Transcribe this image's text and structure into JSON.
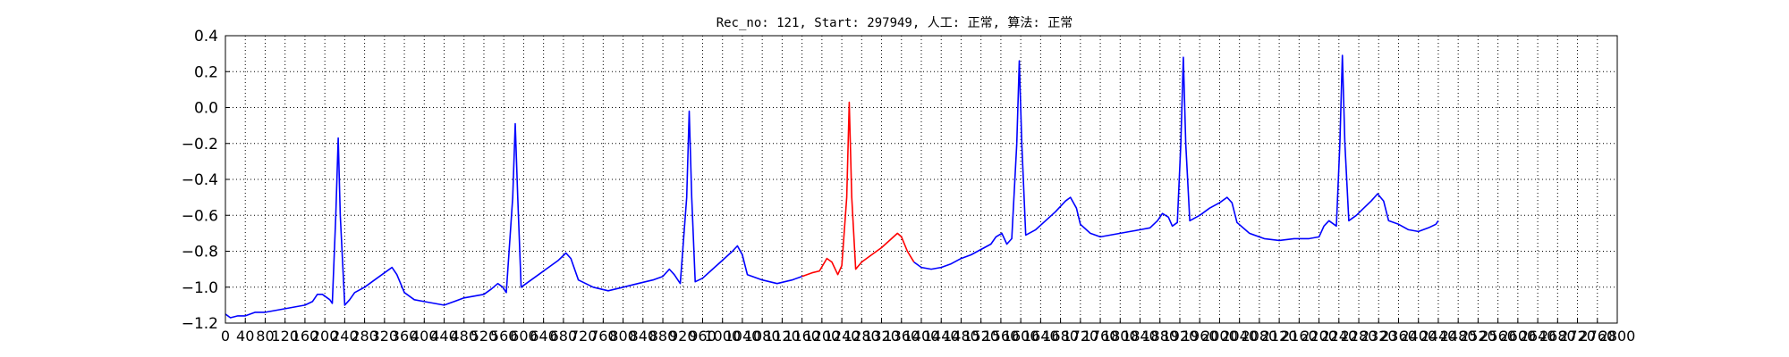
{
  "chart_data": {
    "type": "line",
    "title": "Rec_no: 121, Start: 297949, 人工: 正常, 算法: 正常",
    "xlabel": "",
    "ylabel": "",
    "xlim": [
      0,
      2800
    ],
    "ylim": [
      -1.2,
      0.4
    ],
    "grid": true,
    "y_ticks": [
      0.4,
      0.2,
      0.0,
      -0.2,
      -0.4,
      -0.6,
      -0.8,
      -1.0,
      -1.2
    ],
    "y_tick_labels": [
      "0.4",
      "0.2",
      "0.0",
      "−0.2",
      "−0.4",
      "−0.6",
      "−0.8",
      "−1.0",
      "−1.2"
    ],
    "x_ticks": [
      0,
      40,
      80,
      120,
      160,
      200,
      240,
      280,
      320,
      360,
      400,
      440,
      480,
      520,
      560,
      600,
      640,
      680,
      720,
      760,
      800,
      840,
      880,
      920,
      960,
      1000,
      1040,
      1080,
      1120,
      1160,
      1200,
      1240,
      1280,
      1320,
      1360,
      1400,
      1440,
      1480,
      1520,
      1560,
      1600,
      1640,
      1680,
      1720,
      1760,
      1800,
      1840,
      1880,
      1920,
      1960,
      2000,
      2040,
      2080,
      2120,
      2160,
      2200,
      2240,
      2280,
      2320,
      2360,
      2400,
      2440,
      2480,
      2520,
      2560,
      2600,
      2640,
      2680,
      2720,
      2760,
      2800
    ],
    "x_tick_labels": [
      "0",
      "40",
      "80",
      "120",
      "160",
      "200",
      "240",
      "280",
      "320",
      "360",
      "400",
      "440",
      "480",
      "520",
      "560",
      "600",
      "640",
      "680",
      "720",
      "760",
      "800",
      "840",
      "880",
      "920",
      "960",
      "1000",
      "1040",
      "1080",
      "1120",
      "1160",
      "1200",
      "1240",
      "1280",
      "1320",
      "1360",
      "1400",
      "1440",
      "1480",
      "1520",
      "1560",
      "1600",
      "1640",
      "1680",
      "1720",
      "1760",
      "1800",
      "1840",
      "1880",
      "1920",
      "1960",
      "2000",
      "2040",
      "2080",
      "2120",
      "2160",
      "2200",
      "2240",
      "2280",
      "2320",
      "2360",
      "2400",
      "2440",
      "2480",
      "2520",
      "2560",
      "2600",
      "2640",
      "2680",
      "2720",
      "2760",
      "2800"
    ],
    "series": [
      {
        "color": "#0000ff",
        "points": [
          [
            0,
            -1.15
          ],
          [
            10,
            -1.17
          ],
          [
            25,
            -1.16
          ],
          [
            40,
            -1.16
          ],
          [
            60,
            -1.14
          ],
          [
            80,
            -1.14
          ],
          [
            100,
            -1.13
          ],
          [
            120,
            -1.12
          ],
          [
            140,
            -1.11
          ],
          [
            160,
            -1.1
          ],
          [
            175,
            -1.08
          ],
          [
            185,
            -1.04
          ],
          [
            195,
            -1.04
          ],
          [
            210,
            -1.07
          ],
          [
            215,
            -1.09
          ],
          [
            222,
            -0.6
          ],
          [
            227,
            -0.17
          ],
          [
            231,
            -0.6
          ],
          [
            240,
            -1.1
          ],
          [
            250,
            -1.07
          ],
          [
            260,
            -1.03
          ],
          [
            280,
            -1.0
          ],
          [
            300,
            -0.96
          ],
          [
            320,
            -0.92
          ],
          [
            335,
            -0.89
          ],
          [
            345,
            -0.93
          ],
          [
            360,
            -1.03
          ],
          [
            380,
            -1.07
          ],
          [
            400,
            -1.08
          ],
          [
            420,
            -1.09
          ],
          [
            440,
            -1.1
          ],
          [
            460,
            -1.08
          ],
          [
            480,
            -1.06
          ],
          [
            500,
            -1.05
          ],
          [
            520,
            -1.04
          ],
          [
            535,
            -1.01
          ],
          [
            548,
            -0.98
          ],
          [
            558,
            -1.0
          ],
          [
            565,
            -1.03
          ],
          [
            578,
            -0.5
          ],
          [
            583,
            -0.09
          ],
          [
            588,
            -0.5
          ],
          [
            595,
            -1.0
          ],
          [
            610,
            -0.97
          ],
          [
            630,
            -0.93
          ],
          [
            650,
            -0.89
          ],
          [
            670,
            -0.85
          ],
          [
            685,
            -0.81
          ],
          [
            695,
            -0.84
          ],
          [
            710,
            -0.96
          ],
          [
            740,
            -1.0
          ],
          [
            770,
            -1.02
          ],
          [
            800,
            -1.0
          ],
          [
            830,
            -0.98
          ],
          [
            860,
            -0.96
          ],
          [
            880,
            -0.94
          ],
          [
            893,
            -0.9
          ],
          [
            903,
            -0.93
          ],
          [
            915,
            -0.98
          ],
          [
            928,
            -0.5
          ],
          [
            933,
            -0.02
          ],
          [
            938,
            -0.5
          ],
          [
            945,
            -0.97
          ],
          [
            960,
            -0.95
          ],
          [
            980,
            -0.9
          ],
          [
            1000,
            -0.85
          ],
          [
            1020,
            -0.8
          ],
          [
            1030,
            -0.77
          ],
          [
            1040,
            -0.82
          ],
          [
            1050,
            -0.93
          ],
          [
            1080,
            -0.96
          ],
          [
            1110,
            -0.98
          ],
          [
            1140,
            -0.96
          ],
          [
            1160,
            -0.94
          ]
        ]
      },
      {
        "color": "#ff0000",
        "points": [
          [
            1160,
            -0.94
          ],
          [
            1180,
            -0.92
          ],
          [
            1195,
            -0.91
          ],
          [
            1210,
            -0.84
          ],
          [
            1220,
            -0.86
          ],
          [
            1232,
            -0.93
          ],
          [
            1240,
            -0.88
          ],
          [
            1250,
            -0.5
          ],
          [
            1255,
            0.03
          ],
          [
            1260,
            -0.5
          ],
          [
            1268,
            -0.9
          ],
          [
            1280,
            -0.86
          ],
          [
            1300,
            -0.82
          ],
          [
            1320,
            -0.78
          ],
          [
            1340,
            -0.73
          ],
          [
            1352,
            -0.7
          ],
          [
            1360,
            -0.72
          ],
          [
            1372,
            -0.8
          ],
          [
            1385,
            -0.86
          ]
        ]
      },
      {
        "color": "#0000ff",
        "points": [
          [
            1385,
            -0.86
          ],
          [
            1400,
            -0.89
          ],
          [
            1420,
            -0.9
          ],
          [
            1440,
            -0.89
          ],
          [
            1460,
            -0.87
          ],
          [
            1480,
            -0.84
          ],
          [
            1500,
            -0.82
          ],
          [
            1520,
            -0.79
          ],
          [
            1540,
            -0.76
          ],
          [
            1550,
            -0.72
          ],
          [
            1562,
            -0.7
          ],
          [
            1572,
            -0.76
          ],
          [
            1582,
            -0.73
          ],
          [
            1592,
            -0.2
          ],
          [
            1597,
            0.26
          ],
          [
            1602,
            -0.2
          ],
          [
            1610,
            -0.71
          ],
          [
            1630,
            -0.68
          ],
          [
            1650,
            -0.63
          ],
          [
            1670,
            -0.58
          ],
          [
            1690,
            -0.52
          ],
          [
            1700,
            -0.5
          ],
          [
            1712,
            -0.56
          ],
          [
            1720,
            -0.65
          ],
          [
            1740,
            -0.7
          ],
          [
            1760,
            -0.72
          ],
          [
            1780,
            -0.71
          ],
          [
            1800,
            -0.7
          ],
          [
            1820,
            -0.69
          ],
          [
            1840,
            -0.68
          ],
          [
            1860,
            -0.67
          ],
          [
            1875,
            -0.63
          ],
          [
            1885,
            -0.59
          ],
          [
            1897,
            -0.61
          ],
          [
            1905,
            -0.66
          ],
          [
            1915,
            -0.64
          ],
          [
            1922,
            -0.2
          ],
          [
            1927,
            0.28
          ],
          [
            1932,
            -0.2
          ],
          [
            1940,
            -0.63
          ],
          [
            1960,
            -0.6
          ],
          [
            1980,
            -0.56
          ],
          [
            2000,
            -0.53
          ],
          [
            2015,
            -0.5
          ],
          [
            2025,
            -0.53
          ],
          [
            2035,
            -0.64
          ],
          [
            2060,
            -0.7
          ],
          [
            2090,
            -0.73
          ],
          [
            2120,
            -0.74
          ],
          [
            2150,
            -0.73
          ],
          [
            2180,
            -0.73
          ],
          [
            2200,
            -0.72
          ],
          [
            2210,
            -0.66
          ],
          [
            2220,
            -0.63
          ],
          [
            2235,
            -0.66
          ],
          [
            2242,
            -0.2
          ],
          [
            2247,
            0.29
          ],
          [
            2252,
            -0.2
          ],
          [
            2260,
            -0.63
          ],
          [
            2275,
            -0.6
          ],
          [
            2290,
            -0.56
          ],
          [
            2305,
            -0.52
          ],
          [
            2318,
            -0.48
          ],
          [
            2330,
            -0.52
          ],
          [
            2340,
            -0.63
          ],
          [
            2360,
            -0.65
          ],
          [
            2380,
            -0.68
          ],
          [
            2400,
            -0.69
          ],
          [
            2420,
            -0.67
          ],
          [
            2435,
            -0.65
          ],
          [
            2440,
            -0.63
          ]
        ]
      }
    ]
  }
}
